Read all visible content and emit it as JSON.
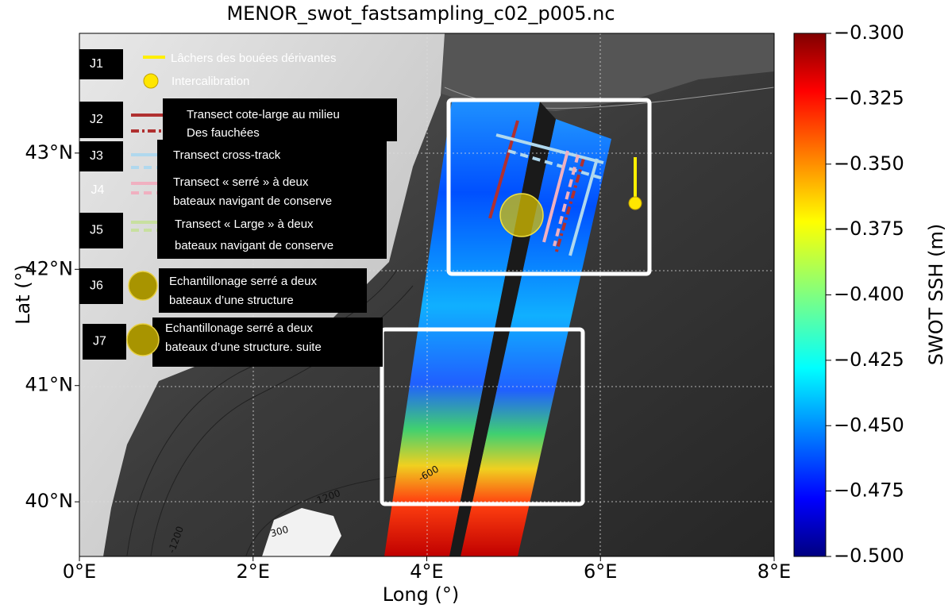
{
  "title": "MENOR_swot_fastsampling_c02_p005.nc",
  "x_axis": {
    "label": "Long (°)",
    "lim": [
      0,
      8
    ],
    "ticks": [
      {
        "value": 0,
        "label": "0°E"
      },
      {
        "value": 2,
        "label": "2°E"
      },
      {
        "value": 4,
        "label": "4°E"
      },
      {
        "value": 6,
        "label": "6°E"
      },
      {
        "value": 8,
        "label": "8°E"
      }
    ]
  },
  "y_axis": {
    "label": "Lat (°)",
    "lim": [
      39.53,
      44.03
    ],
    "ticks": [
      {
        "value": 40,
        "label": "40°N"
      },
      {
        "value": 41,
        "label": "41°N"
      },
      {
        "value": 42,
        "label": "42°N"
      },
      {
        "value": 43,
        "label": "43°N"
      }
    ]
  },
  "colorbar": {
    "label": "SWOT SSH (m)",
    "lim": [
      -0.5,
      -0.3
    ],
    "ticks": [
      {
        "value": -0.3,
        "label": "−0.300"
      },
      {
        "value": -0.325,
        "label": "−0.325"
      },
      {
        "value": -0.35,
        "label": "−0.350"
      },
      {
        "value": -0.375,
        "label": "−0.375"
      },
      {
        "value": -0.4,
        "label": "−0.400"
      },
      {
        "value": -0.425,
        "label": "−0.425"
      },
      {
        "value": -0.45,
        "label": "−0.450"
      },
      {
        "value": -0.475,
        "label": "−0.475"
      },
      {
        "value": -0.5,
        "label": "−0.500"
      }
    ]
  },
  "contour_labels": [
    "-600",
    "-1200",
    "300",
    "-1200"
  ],
  "legend": [
    {
      "code": "J1",
      "lines": [
        "Lâchers des bouées dérivantes"
      ]
    },
    {
      "lines": [
        "Intercalibration"
      ]
    },
    {
      "code": "J2",
      "lines": [
        "Transect cote-large au milieu",
        "Des fauchées"
      ]
    },
    {
      "code": "J3",
      "lines": [
        "Transect cross-track"
      ]
    },
    {
      "code": "J4",
      "lines": [
        "Transect « serré »  à deux",
        "bateaux navigant de conserve"
      ]
    },
    {
      "code": "J5",
      "lines": [
        "Transect « Large »  à deux",
        "bateaux navigant de conserve"
      ]
    },
    {
      "code": "J6",
      "lines": [
        "Echantillonage serré a deux",
        "bateaux d’une structure"
      ]
    },
    {
      "code": "J7",
      "lines": [
        "Echantillonage serré a deux",
        "bateaux d’une structure. suite"
      ]
    }
  ]
}
